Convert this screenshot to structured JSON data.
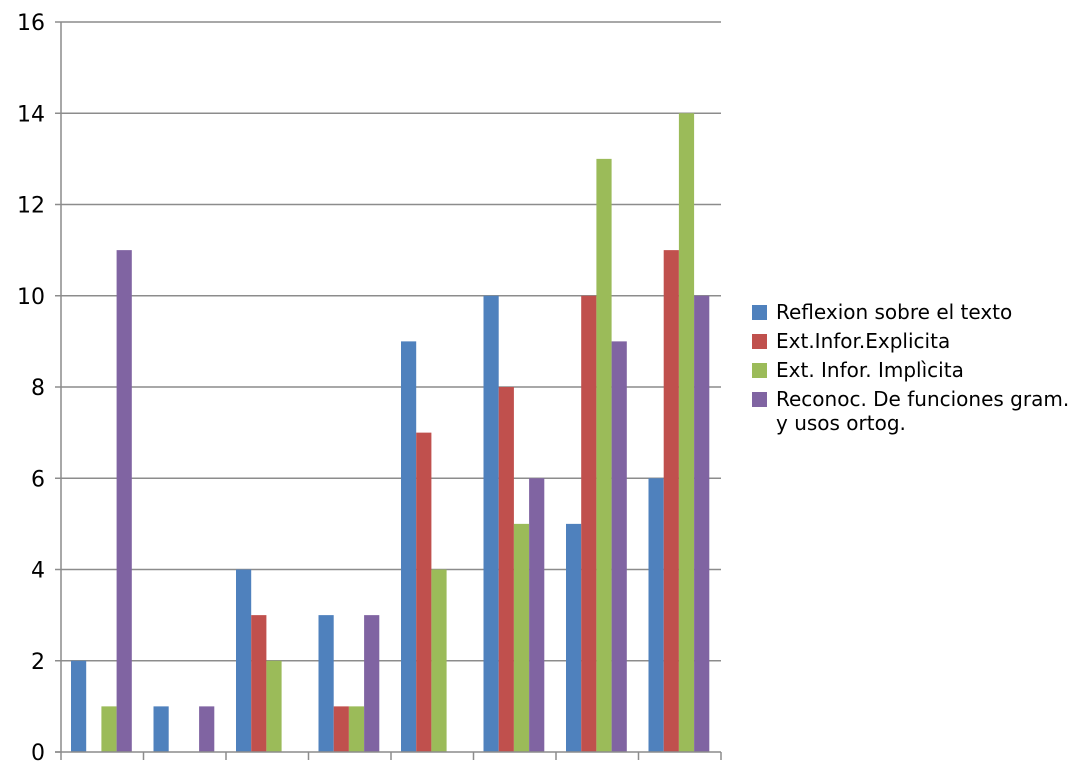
{
  "chart_data": {
    "type": "bar",
    "categories": [
      "",
      "",
      "",
      "",
      "",
      "",
      "",
      ""
    ],
    "series": [
      {
        "name": "Reflexion sobre el texto",
        "color": "#4F81BD",
        "values": [
          2,
          1,
          4,
          3,
          9,
          10,
          5,
          6
        ]
      },
      {
        "name": "Ext.Infor.Explicita",
        "color": "#C0504D",
        "values": [
          0,
          0,
          3,
          1,
          7,
          8,
          10,
          11
        ]
      },
      {
        "name": "Ext. Infor. Implìcita",
        "color": "#9BBB59",
        "values": [
          1,
          0,
          2,
          1,
          4,
          5,
          13,
          14
        ]
      },
      {
        "name": "Reconoc. De funciones gram. y usos ortog.",
        "color": "#8064A2",
        "values": [
          11,
          1,
          0,
          3,
          0,
          6,
          9,
          10
        ]
      }
    ],
    "ylim": [
      0,
      16
    ],
    "yticks": [
      "0",
      "2",
      "4",
      "6",
      "8",
      "10",
      "12",
      "14",
      "16"
    ],
    "grid": true,
    "legend_position": "right",
    "title": "",
    "xlabel": "",
    "ylabel": ""
  }
}
